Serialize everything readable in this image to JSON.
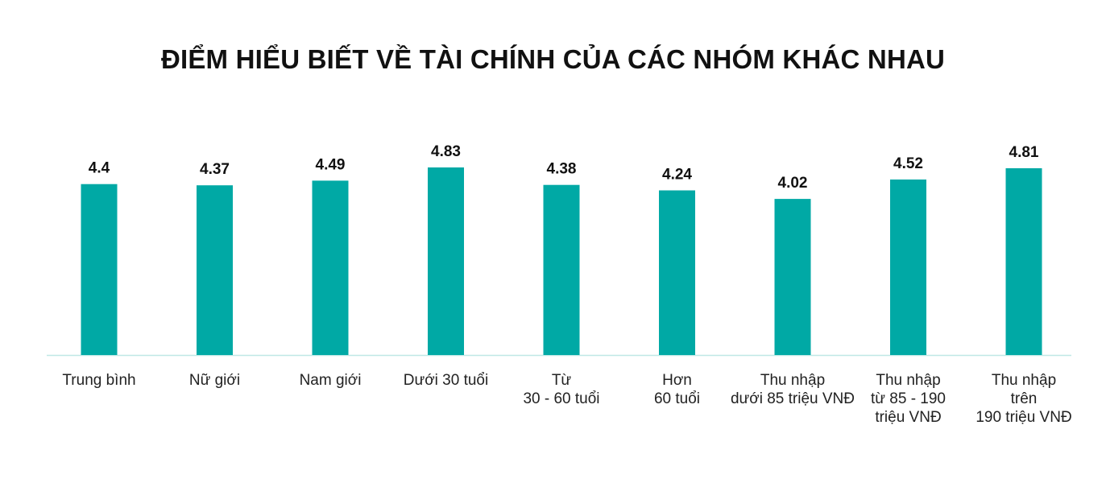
{
  "chart_data": {
    "type": "bar",
    "title": "ĐIỂM HIỂU BIẾT VỀ TÀI CHÍNH CỦA CÁC NHÓM KHÁC NHAU",
    "categories": [
      "Trung bình",
      "Nữ giới",
      "Nam giới",
      "Dưới 30 tuổi",
      "Từ\n30 - 60 tuổi",
      "Hơn\n60 tuổi",
      "Thu nhập\ndưới 85 triệu VNĐ",
      "Thu nhập\ntừ 85 - 190\ntriệu VNĐ",
      "Thu nhập\ntrên\n190 triệu VNĐ"
    ],
    "values": [
      4.4,
      4.37,
      4.49,
      4.83,
      4.38,
      4.24,
      4.02,
      4.52,
      4.81
    ],
    "value_labels": [
      "4.4",
      "4.37",
      "4.49",
      "4.83",
      "4.38",
      "4.24",
      "4.02",
      "4.52",
      "4.81"
    ],
    "xlabel": "",
    "ylabel": "",
    "ylim": [
      0,
      4.83
    ],
    "grid": false,
    "legend": "none",
    "colors": {
      "bar": "#00A9A5",
      "baseline": "#BFE8E6",
      "title": "#111111",
      "text": "#222222"
    }
  }
}
